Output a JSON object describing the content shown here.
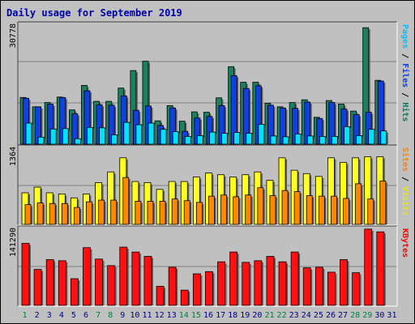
{
  "title": "Daily usage for September 2019",
  "chart_data": [
    {
      "type": "bar",
      "panel": "top",
      "ymax_label": "30778",
      "ylim": [
        0,
        30778
      ],
      "right_label": [
        {
          "text": "Pages",
          "color": "#00c0ff"
        },
        {
          "text": " / ",
          "color": "#000000"
        },
        {
          "text": "Files",
          "color": "#0040ff"
        },
        {
          "text": " / ",
          "color": "#000000"
        },
        {
          "text": "Hits",
          "color": "#008060"
        }
      ],
      "series": [
        {
          "name": "Hits",
          "color": "#1a8060",
          "values": [
            12000,
            9600,
            10700,
            12100,
            8800,
            15100,
            11000,
            11000,
            14400,
            18900,
            21300,
            6000,
            9900,
            5900,
            8300,
            8200,
            11900,
            19900,
            15900,
            15900,
            10500,
            9600,
            10700,
            11400,
            6900,
            11200,
            10300,
            8500,
            29900,
            16400,
            0
          ]
        },
        {
          "name": "Files",
          "color": "#1040e0",
          "values": [
            11800,
            9600,
            10300,
            12000,
            7800,
            13700,
            10100,
            10000,
            12400,
            8700,
            9800,
            4800,
            9300,
            3300,
            6700,
            7100,
            9900,
            17600,
            14300,
            15000,
            10000,
            9300,
            9200,
            10800,
            6600,
            10700,
            9000,
            7600,
            8200,
            16200,
            0
          ]
        },
        {
          "name": "Pages",
          "color": "#00e0ff",
          "values": [
            5400,
            1800,
            3900,
            4000,
            1400,
            4300,
            4200,
            2400,
            5600,
            5000,
            5400,
            3800,
            3200,
            2000,
            2200,
            3100,
            2800,
            3000,
            2800,
            5100,
            2100,
            1900,
            2600,
            2100,
            2000,
            2000,
            4500,
            2200,
            3800,
            3400,
            0
          ]
        }
      ]
    },
    {
      "type": "bar",
      "panel": "middle",
      "ymax_label": "1364",
      "ylim": [
        0,
        1364
      ],
      "right_label": [
        {
          "text": "Sites",
          "color": "#ff8000"
        },
        {
          "text": " / ",
          "color": "#000000"
        },
        {
          "text": "Visits",
          "color": "#e8e800"
        }
      ],
      "series": [
        {
          "name": "Visits",
          "color": "#ffff20",
          "values": [
            560,
            660,
            560,
            540,
            470,
            540,
            740,
            930,
            1180,
            760,
            740,
            620,
            760,
            760,
            840,
            910,
            880,
            840,
            880,
            930,
            780,
            1180,
            960,
            900,
            850,
            1180,
            1100,
            1180,
            1200,
            1200,
            0
          ]
        },
        {
          "name": "Sites",
          "color": "#ff8800",
          "values": [
            350,
            380,
            370,
            370,
            300,
            400,
            430,
            430,
            830,
            410,
            410,
            410,
            450,
            420,
            390,
            500,
            520,
            490,
            520,
            650,
            510,
            600,
            580,
            510,
            500,
            500,
            460,
            720,
            450,
            770,
            0
          ]
        }
      ]
    },
    {
      "type": "bar",
      "panel": "bottom",
      "ymax_label": "141290",
      "ylim": [
        0,
        141290
      ],
      "right_label": [
        {
          "text": "KBytes",
          "color": "#ff0000"
        }
      ],
      "series": [
        {
          "name": "KBytes",
          "color": "#ff1010",
          "values": [
            114000,
            66000,
            84000,
            82000,
            49000,
            106000,
            85000,
            73000,
            107000,
            98000,
            90000,
            35000,
            70000,
            28000,
            58000,
            62000,
            80000,
            98000,
            79000,
            82000,
            90000,
            80000,
            98000,
            69000,
            70000,
            61000,
            84000,
            60000,
            140000,
            135000,
            0
          ]
        }
      ]
    }
  ],
  "days": [
    {
      "label": "1",
      "color": "#008040"
    },
    {
      "label": "2",
      "color": "#000080"
    },
    {
      "label": "3",
      "color": "#000080"
    },
    {
      "label": "4",
      "color": "#000080"
    },
    {
      "label": "5",
      "color": "#000080"
    },
    {
      "label": "6",
      "color": "#000080"
    },
    {
      "label": "7",
      "color": "#008040"
    },
    {
      "label": "8",
      "color": "#008040"
    },
    {
      "label": "9",
      "color": "#000080"
    },
    {
      "label": "10",
      "color": "#000080"
    },
    {
      "label": "11",
      "color": "#000080"
    },
    {
      "label": "12",
      "color": "#000080"
    },
    {
      "label": "13",
      "color": "#000080"
    },
    {
      "label": "14",
      "color": "#008040"
    },
    {
      "label": "15",
      "color": "#008040"
    },
    {
      "label": "16",
      "color": "#000080"
    },
    {
      "label": "17",
      "color": "#000080"
    },
    {
      "label": "18",
      "color": "#000080"
    },
    {
      "label": "19",
      "color": "#000080"
    },
    {
      "label": "20",
      "color": "#000080"
    },
    {
      "label": "21",
      "color": "#008040"
    },
    {
      "label": "22",
      "color": "#008040"
    },
    {
      "label": "23",
      "color": "#000080"
    },
    {
      "label": "24",
      "color": "#000080"
    },
    {
      "label": "25",
      "color": "#000080"
    },
    {
      "label": "26",
      "color": "#000080"
    },
    {
      "label": "27",
      "color": "#000080"
    },
    {
      "label": "28",
      "color": "#008040"
    },
    {
      "label": "29",
      "color": "#008040"
    },
    {
      "label": "30",
      "color": "#000080"
    },
    {
      "label": "31",
      "color": "#000080"
    }
  ]
}
